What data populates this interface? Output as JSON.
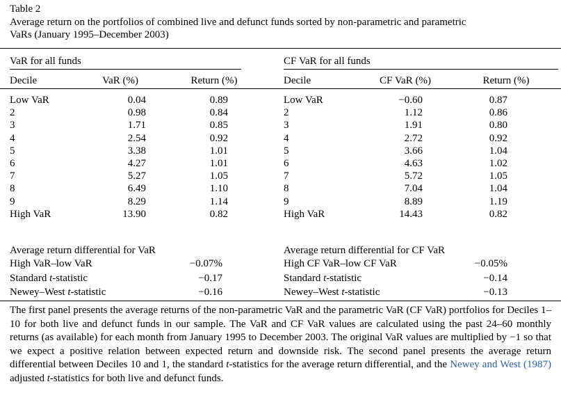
{
  "table_label": "Table 2",
  "caption_line1": "Average return on the portfolios of combined live and defunct funds sorted by non-parametric and parametric",
  "caption_line2": "VaRs (January 1995–December 2003)",
  "left": {
    "panel_title": "VaR for all funds",
    "headers": [
      "Decile",
      "VaR (%)",
      "Return (%)"
    ],
    "rows": [
      [
        "Low VaR",
        "0.04",
        "0.89"
      ],
      [
        "2",
        "0.98",
        "0.84"
      ],
      [
        "3",
        "1.71",
        "0.85"
      ],
      [
        "4",
        "2.54",
        "0.92"
      ],
      [
        "5",
        "3.38",
        "1.01"
      ],
      [
        "6",
        "4.27",
        "1.01"
      ],
      [
        "7",
        "5.27",
        "1.05"
      ],
      [
        "8",
        "6.49",
        "1.10"
      ],
      [
        "9",
        "8.29",
        "1.14"
      ],
      [
        "High VaR",
        "13.90",
        "0.82"
      ]
    ],
    "diff_title": "Average return differential for VaR",
    "diff_rows": [
      {
        "pre": "High VaR–low VaR",
        "ital": "",
        "post": "",
        "value": "−0.07%"
      },
      {
        "pre": "Standard ",
        "ital": "t",
        "post": "-statistic",
        "value": "−0.17"
      },
      {
        "pre": "Newey–West ",
        "ital": "t",
        "post": "-statistic",
        "value": "−0.16"
      }
    ]
  },
  "right": {
    "panel_title": "CF VaR for all funds",
    "headers": [
      "Decile",
      "CF VaR (%)",
      "Return (%)"
    ],
    "rows": [
      [
        "Low VaR",
        "−0.60",
        "0.87"
      ],
      [
        "2",
        "1.12",
        "0.86"
      ],
      [
        "3",
        "1.91",
        "0.80"
      ],
      [
        "4",
        "2.72",
        "0.92"
      ],
      [
        "5",
        "3.66",
        "1.04"
      ],
      [
        "6",
        "4.63",
        "1.02"
      ],
      [
        "7",
        "5.72",
        "1.05"
      ],
      [
        "8",
        "7.04",
        "1.04"
      ],
      [
        "9",
        "8.89",
        "1.19"
      ],
      [
        "High VaR",
        "14.43",
        "0.82"
      ]
    ],
    "diff_title": "Average return differential for CF VaR",
    "diff_rows": [
      {
        "pre": "High CF VaR–low CF VaR",
        "ital": "",
        "post": "",
        "value": "−0.05%"
      },
      {
        "pre": "Standard ",
        "ital": "t",
        "post": "-statistic",
        "value": "−0.14"
      },
      {
        "pre": "Newey–West ",
        "ital": "t",
        "post": "-statistic",
        "value": "−0.13"
      }
    ]
  },
  "note": {
    "p1": "The first panel presents the average returns of the non-parametric VaR and the parametric VaR (CF VaR) portfolios for Deciles 1–10 for both live and defunct funds in our sample. The VaR and CF VaR values are calculated using the past 24–60 monthly returns (as available) for each month from January 1995 to December 2003. The original VaR values are multiplied by −1 so that we expect a positive relation between expected return and downside risk. The second panel presents the average return differential between Deciles 10 and 1, the standard ",
    "t1": "t",
    "p2": "-statistics for the average return differential, and the ",
    "link": "Newey and West (1987)",
    "p3": " adjusted ",
    "t2": "t",
    "p4": "-statistics for both live and defunct funds."
  }
}
